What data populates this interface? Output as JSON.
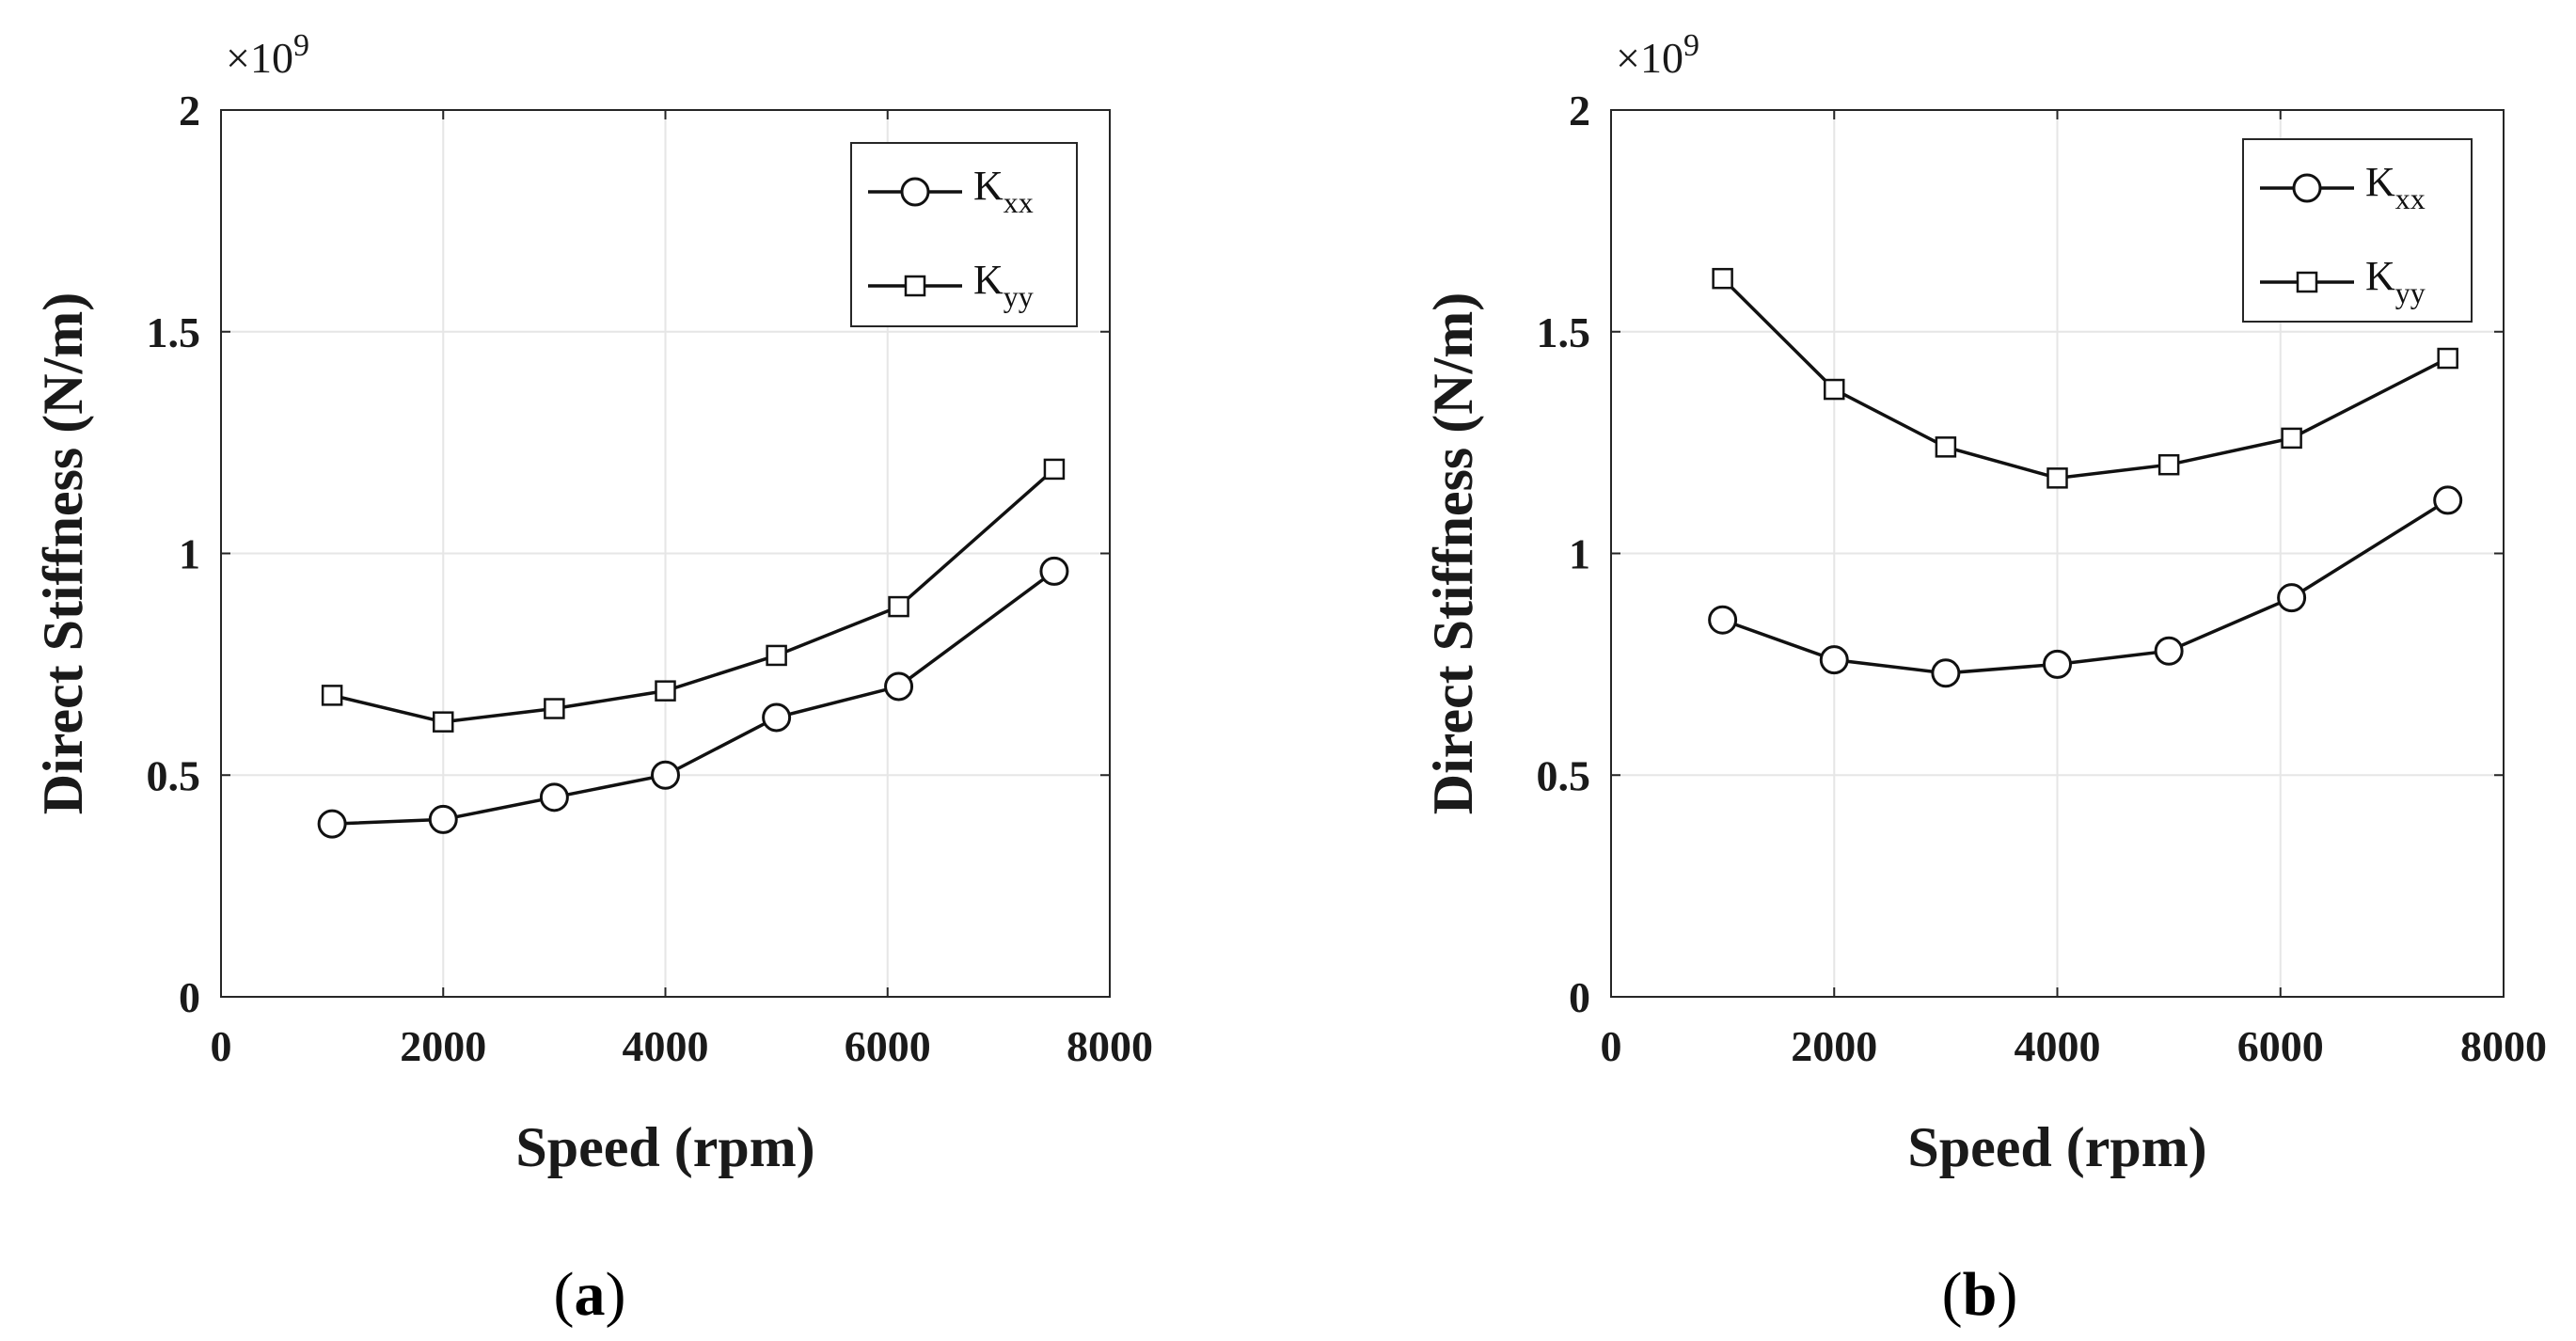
{
  "chart_data": [
    {
      "type": "line",
      "panel_label": "a",
      "xlabel": "Speed (rpm)",
      "ylabel": "Direct Stiffness (N/m)",
      "xlim": [
        0,
        8000
      ],
      "ylim": [
        0,
        2
      ],
      "xticks": [
        0,
        2000,
        4000,
        6000,
        8000
      ],
      "xtick_labels": [
        "0",
        "2000",
        "4000",
        "6000",
        "8000"
      ],
      "yticks": [
        0,
        0.5,
        1,
        1.5,
        2
      ],
      "ytick_labels": [
        "0",
        "0.5",
        "1",
        "1.5",
        "2"
      ],
      "y_multiplier": {
        "base": "×10",
        "exponent": "9"
      },
      "grid": true,
      "legend_position": "top-right",
      "x": [
        1000,
        2000,
        3000,
        4000,
        5000,
        6100,
        7500
      ],
      "series": [
        {
          "name": "K",
          "subscript": "xx",
          "marker": "circle",
          "values": [
            0.39,
            0.4,
            0.45,
            0.5,
            0.63,
            0.7,
            0.96
          ]
        },
        {
          "name": "K",
          "subscript": "yy",
          "marker": "square",
          "values": [
            0.68,
            0.62,
            0.65,
            0.69,
            0.77,
            0.88,
            1.19
          ]
        }
      ]
    },
    {
      "type": "line",
      "panel_label": "b",
      "xlabel": "Speed (rpm)",
      "ylabel": "Direct Stiffness (N/m)",
      "xlim": [
        0,
        8000
      ],
      "ylim": [
        0,
        2
      ],
      "xticks": [
        0,
        2000,
        4000,
        6000,
        8000
      ],
      "xtick_labels": [
        "0",
        "2000",
        "4000",
        "6000",
        "8000"
      ],
      "yticks": [
        0,
        0.5,
        1,
        1.5,
        2
      ],
      "ytick_labels": [
        "0",
        "0.5",
        "1",
        "1.5",
        "2"
      ],
      "y_multiplier": {
        "base": "×10",
        "exponent": "9"
      },
      "grid": true,
      "legend_position": "top-right",
      "x": [
        1000,
        2000,
        3000,
        4000,
        5000,
        6100,
        7500
      ],
      "series": [
        {
          "name": "K",
          "subscript": "xx",
          "marker": "circle",
          "values": [
            0.85,
            0.76,
            0.73,
            0.75,
            0.78,
            0.9,
            1.12
          ]
        },
        {
          "name": "K",
          "subscript": "yy",
          "marker": "square",
          "values": [
            1.62,
            1.37,
            1.24,
            1.17,
            1.2,
            1.26,
            1.44
          ]
        }
      ]
    }
  ]
}
